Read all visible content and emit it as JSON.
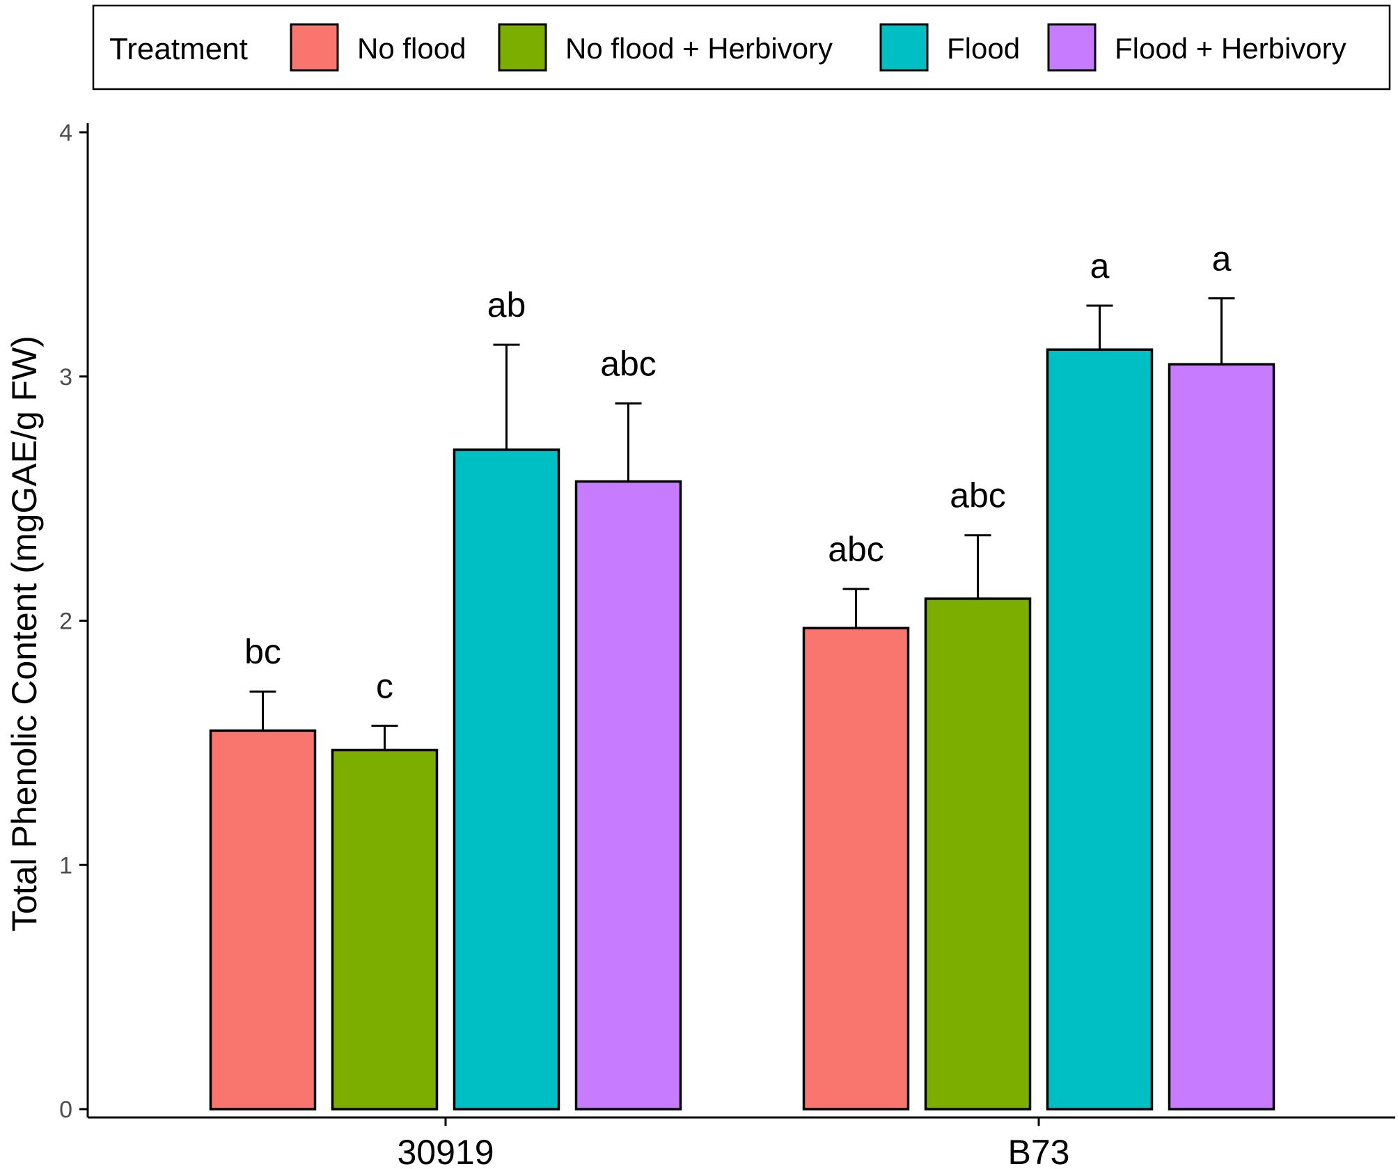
{
  "chart_data": {
    "type": "bar",
    "title": "",
    "xlabel": "",
    "ylabel": "Total Phenolic Content (mgGAE/g FW)",
    "ylim": [
      0,
      4
    ],
    "yticks": [
      "0",
      "1",
      "2",
      "3",
      "4"
    ],
    "categories": [
      "30919",
      "B73"
    ],
    "legend": {
      "title": "Treatment",
      "position": "top"
    },
    "series": [
      {
        "name": "No flood",
        "color": "#F8766D",
        "values": [
          1.55,
          1.97
        ],
        "errors": [
          0.16,
          0.16
        ],
        "labels": [
          "bc",
          "abc"
        ]
      },
      {
        "name": "No flood + Herbivory",
        "color": "#7CAE00",
        "values": [
          1.47,
          2.09
        ],
        "errors": [
          0.1,
          0.26
        ],
        "labels": [
          "c",
          "abc"
        ]
      },
      {
        "name": "Flood",
        "color": "#00BFC4",
        "values": [
          2.7,
          3.11
        ],
        "errors": [
          0.43,
          0.18
        ],
        "labels": [
          "ab",
          "a"
        ]
      },
      {
        "name": "Flood + Herbivory",
        "color": "#C77CFF",
        "values": [
          2.57,
          3.05
        ],
        "errors": [
          0.32,
          0.27
        ],
        "labels": [
          "abc",
          "a"
        ]
      }
    ],
    "grid": false
  }
}
